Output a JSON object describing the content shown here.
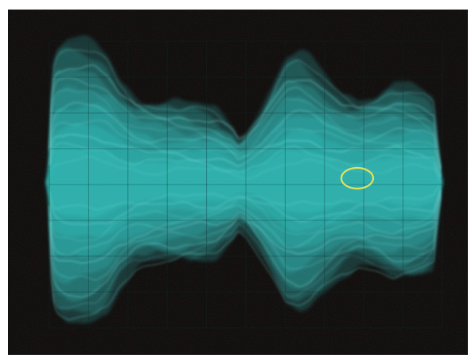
{
  "image": {
    "subject": "eye-diagram-oscilloscope-trace",
    "trace_color": "#35c9c6",
    "background_color": "#0b0908",
    "highlight_color": "#e3e35a",
    "highlight_shape": "ellipse",
    "text_visible": false
  }
}
